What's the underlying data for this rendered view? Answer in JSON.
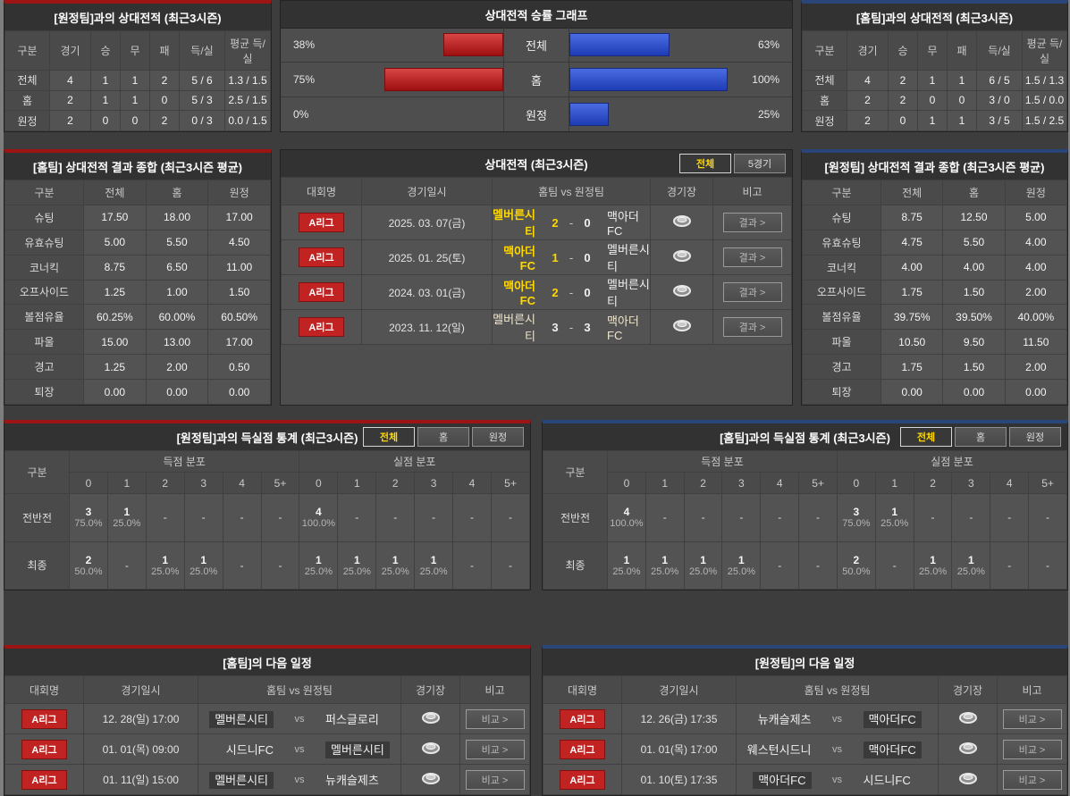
{
  "colors": {
    "red_accent": "#9c1414",
    "blue_accent": "#2a4679",
    "bar_red": "#c32a2a",
    "bar_blue": "#2b4fd4",
    "winner_yellow": "#ffd800",
    "league_badge_red": "#c02321"
  },
  "away_h2h": {
    "title": "[원정팀]과의 상대전적 (최근3시즌)",
    "columns": [
      "구분",
      "경기",
      "승",
      "무",
      "패",
      "득/실",
      "평균 득/실"
    ],
    "rows": [
      {
        "label": "전체",
        "cells": [
          "4",
          "1",
          "1",
          "2",
          "5 / 6",
          "1.3 / 1.5"
        ]
      },
      {
        "label": "홈",
        "cells": [
          "2",
          "1",
          "1",
          "0",
          "5 / 3",
          "2.5 / 1.5"
        ]
      },
      {
        "label": "원정",
        "cells": [
          "2",
          "0",
          "0",
          "2",
          "0 / 3",
          "0.0 / 1.5"
        ]
      }
    ]
  },
  "win_rate_chart": {
    "title": "상대전적 승률 그래프",
    "rows": [
      {
        "label": "전체",
        "left_pct": "38%",
        "left_value": 38,
        "right_pct": "63%",
        "right_value": 63
      },
      {
        "label": "홈",
        "left_pct": "75%",
        "left_value": 75,
        "right_pct": "100%",
        "right_value": 100
      },
      {
        "label": "원정",
        "left_pct": "0%",
        "left_value": 0,
        "right_pct": "25%",
        "right_value": 25
      }
    ]
  },
  "home_h2h": {
    "title": "[홈팀]과의 상대전적 (최근3시즌)",
    "columns": [
      "구분",
      "경기",
      "승",
      "무",
      "패",
      "득/실",
      "평균 득/실"
    ],
    "rows": [
      {
        "label": "전체",
        "cells": [
          "4",
          "2",
          "1",
          "1",
          "6 / 5",
          "1.5 / 1.3"
        ]
      },
      {
        "label": "홈",
        "cells": [
          "2",
          "2",
          "0",
          "0",
          "3 / 0",
          "1.5 / 0.0"
        ]
      },
      {
        "label": "원정",
        "cells": [
          "2",
          "0",
          "1",
          "1",
          "3 / 5",
          "1.5 / 2.5"
        ]
      }
    ]
  },
  "home_summary": {
    "title": "[홈팀] 상대전적 결과 종합 (최근3시즌 평균)",
    "columns": [
      "구분",
      "전체",
      "홈",
      "원정"
    ],
    "rows": [
      {
        "label": "슈팅",
        "cells": [
          "17.50",
          "18.00",
          "17.00"
        ]
      },
      {
        "label": "유효슈팅",
        "cells": [
          "5.00",
          "5.50",
          "4.50"
        ]
      },
      {
        "label": "코너킥",
        "cells": [
          "8.75",
          "6.50",
          "11.00"
        ]
      },
      {
        "label": "오프사이드",
        "cells": [
          "1.25",
          "1.00",
          "1.50"
        ]
      },
      {
        "label": "볼점유율",
        "cells": [
          "60.25%",
          "60.00%",
          "60.50%"
        ]
      },
      {
        "label": "파울",
        "cells": [
          "15.00",
          "13.00",
          "17.00"
        ]
      },
      {
        "label": "경고",
        "cells": [
          "1.25",
          "2.00",
          "0.50"
        ]
      },
      {
        "label": "퇴장",
        "cells": [
          "0.00",
          "0.00",
          "0.00"
        ]
      }
    ]
  },
  "away_summary": {
    "title": "[원정팀] 상대전적 결과 종합 (최근3시즌 평균)",
    "columns": [
      "구분",
      "전체",
      "홈",
      "원정"
    ],
    "rows": [
      {
        "label": "슈팅",
        "cells": [
          "8.75",
          "12.50",
          "5.00"
        ]
      },
      {
        "label": "유효슈팅",
        "cells": [
          "4.75",
          "5.50",
          "4.00"
        ]
      },
      {
        "label": "코너킥",
        "cells": [
          "4.00",
          "4.00",
          "4.00"
        ]
      },
      {
        "label": "오프사이드",
        "cells": [
          "1.75",
          "1.50",
          "2.00"
        ]
      },
      {
        "label": "볼점유율",
        "cells": [
          "39.75%",
          "39.50%",
          "40.00%"
        ]
      },
      {
        "label": "파울",
        "cells": [
          "10.50",
          "9.50",
          "11.50"
        ]
      },
      {
        "label": "경고",
        "cells": [
          "1.75",
          "1.50",
          "2.00"
        ]
      },
      {
        "label": "퇴장",
        "cells": [
          "0.00",
          "0.00",
          "0.00"
        ]
      }
    ]
  },
  "h2h_matches": {
    "title": "상대전적 (최근3시즌)",
    "tabs": [
      "전체",
      "5경기"
    ],
    "active_tab": "전체",
    "columns": [
      "대회명",
      "경기일시",
      "홈팀  vs  원정팀",
      "경기장",
      "비고"
    ],
    "result_button": "결과 >",
    "matches": [
      {
        "league": "A리그",
        "date": "2025. 03. 07(금)",
        "home": "멜버른시티",
        "home_score": "2",
        "away_score": "0",
        "away": "맥아더FC",
        "result": "home"
      },
      {
        "league": "A리그",
        "date": "2025. 01. 25(토)",
        "home": "맥아더FC",
        "home_score": "1",
        "away_score": "0",
        "away": "멜버른시티",
        "result": "home"
      },
      {
        "league": "A리그",
        "date": "2024. 03. 01(금)",
        "home": "맥아더FC",
        "home_score": "2",
        "away_score": "0",
        "away": "멜버른시티",
        "result": "home"
      },
      {
        "league": "A리그",
        "date": "2023. 11. 12(일)",
        "home": "멜버른시티",
        "home_score": "3",
        "away_score": "3",
        "away": "맥아더FC",
        "result": "draw"
      }
    ]
  },
  "away_goal_stats": {
    "title": "[원정팀]과의 득실점 통계 (최근3시즌)",
    "tabs": [
      "전체",
      "홈",
      "원정"
    ],
    "active_tab": "전체",
    "label_col": "구분",
    "group_headers": [
      "득점 분포",
      "실점 분포"
    ],
    "score_cols": [
      "0",
      "1",
      "2",
      "3",
      "4",
      "5+"
    ],
    "rows": [
      {
        "label": "전반전",
        "scored": [
          {
            "n": "3",
            "pct": "75.0%"
          },
          {
            "n": "1",
            "pct": "25.0%"
          },
          null,
          null,
          null,
          null
        ],
        "conceded": [
          {
            "n": "4",
            "pct": "100.0%"
          },
          null,
          null,
          null,
          null,
          null
        ]
      },
      {
        "label": "최종",
        "scored": [
          {
            "n": "2",
            "pct": "50.0%"
          },
          null,
          {
            "n": "1",
            "pct": "25.0%"
          },
          {
            "n": "1",
            "pct": "25.0%"
          },
          null,
          null
        ],
        "conceded": [
          {
            "n": "1",
            "pct": "25.0%"
          },
          {
            "n": "1",
            "pct": "25.0%"
          },
          {
            "n": "1",
            "pct": "25.0%"
          },
          {
            "n": "1",
            "pct": "25.0%"
          },
          null,
          null
        ]
      }
    ]
  },
  "home_goal_stats": {
    "title": "[홈팀]과의 득실점 통계 (최근3시즌)",
    "tabs": [
      "전체",
      "홈",
      "원정"
    ],
    "active_tab": "전체",
    "label_col": "구분",
    "group_headers": [
      "득점 분포",
      "실점 분포"
    ],
    "score_cols": [
      "0",
      "1",
      "2",
      "3",
      "4",
      "5+"
    ],
    "rows": [
      {
        "label": "전반전",
        "scored": [
          {
            "n": "4",
            "pct": "100.0%"
          },
          null,
          null,
          null,
          null,
          null
        ],
        "conceded": [
          {
            "n": "3",
            "pct": "75.0%"
          },
          {
            "n": "1",
            "pct": "25.0%"
          },
          null,
          null,
          null,
          null
        ]
      },
      {
        "label": "최종",
        "scored": [
          {
            "n": "1",
            "pct": "25.0%"
          },
          {
            "n": "1",
            "pct": "25.0%"
          },
          {
            "n": "1",
            "pct": "25.0%"
          },
          {
            "n": "1",
            "pct": "25.0%"
          },
          null,
          null
        ],
        "conceded": [
          {
            "n": "2",
            "pct": "50.0%"
          },
          null,
          {
            "n": "1",
            "pct": "25.0%"
          },
          {
            "n": "1",
            "pct": "25.0%"
          },
          null,
          null
        ]
      }
    ]
  },
  "home_schedule": {
    "title": "[홈팀]의 다음 일정",
    "columns": [
      "대회명",
      "경기일시",
      "홈팀  vs  원정팀",
      "경기장",
      "비고"
    ],
    "compare_button": "비교 >",
    "rows": [
      {
        "league": "A리그",
        "date": "12. 28(일) 17:00",
        "home": "멜버른시티",
        "away": "퍼스글로리",
        "highlight": "home"
      },
      {
        "league": "A리그",
        "date": "01. 01(목) 09:00",
        "home": "시드니FC",
        "away": "멜버른시티",
        "highlight": "away"
      },
      {
        "league": "A리그",
        "date": "01. 11(일) 15:00",
        "home": "멜버른시티",
        "away": "뉴캐슬제츠",
        "highlight": "home"
      }
    ]
  },
  "away_schedule": {
    "title": "[원정팀]의 다음 일정",
    "columns": [
      "대회명",
      "경기일시",
      "홈팀  vs  원정팀",
      "경기장",
      "비고"
    ],
    "compare_button": "비교 >",
    "rows": [
      {
        "league": "A리그",
        "date": "12. 26(금) 17:35",
        "home": "뉴캐슬제츠",
        "away": "맥아더FC",
        "highlight": "away"
      },
      {
        "league": "A리그",
        "date": "01. 01(목) 17:00",
        "home": "웨스턴시드니",
        "away": "맥아더FC",
        "highlight": "away"
      },
      {
        "league": "A리그",
        "date": "01. 10(토) 17:35",
        "home": "맥아더FC",
        "away": "시드니FC",
        "highlight": "home"
      }
    ]
  }
}
